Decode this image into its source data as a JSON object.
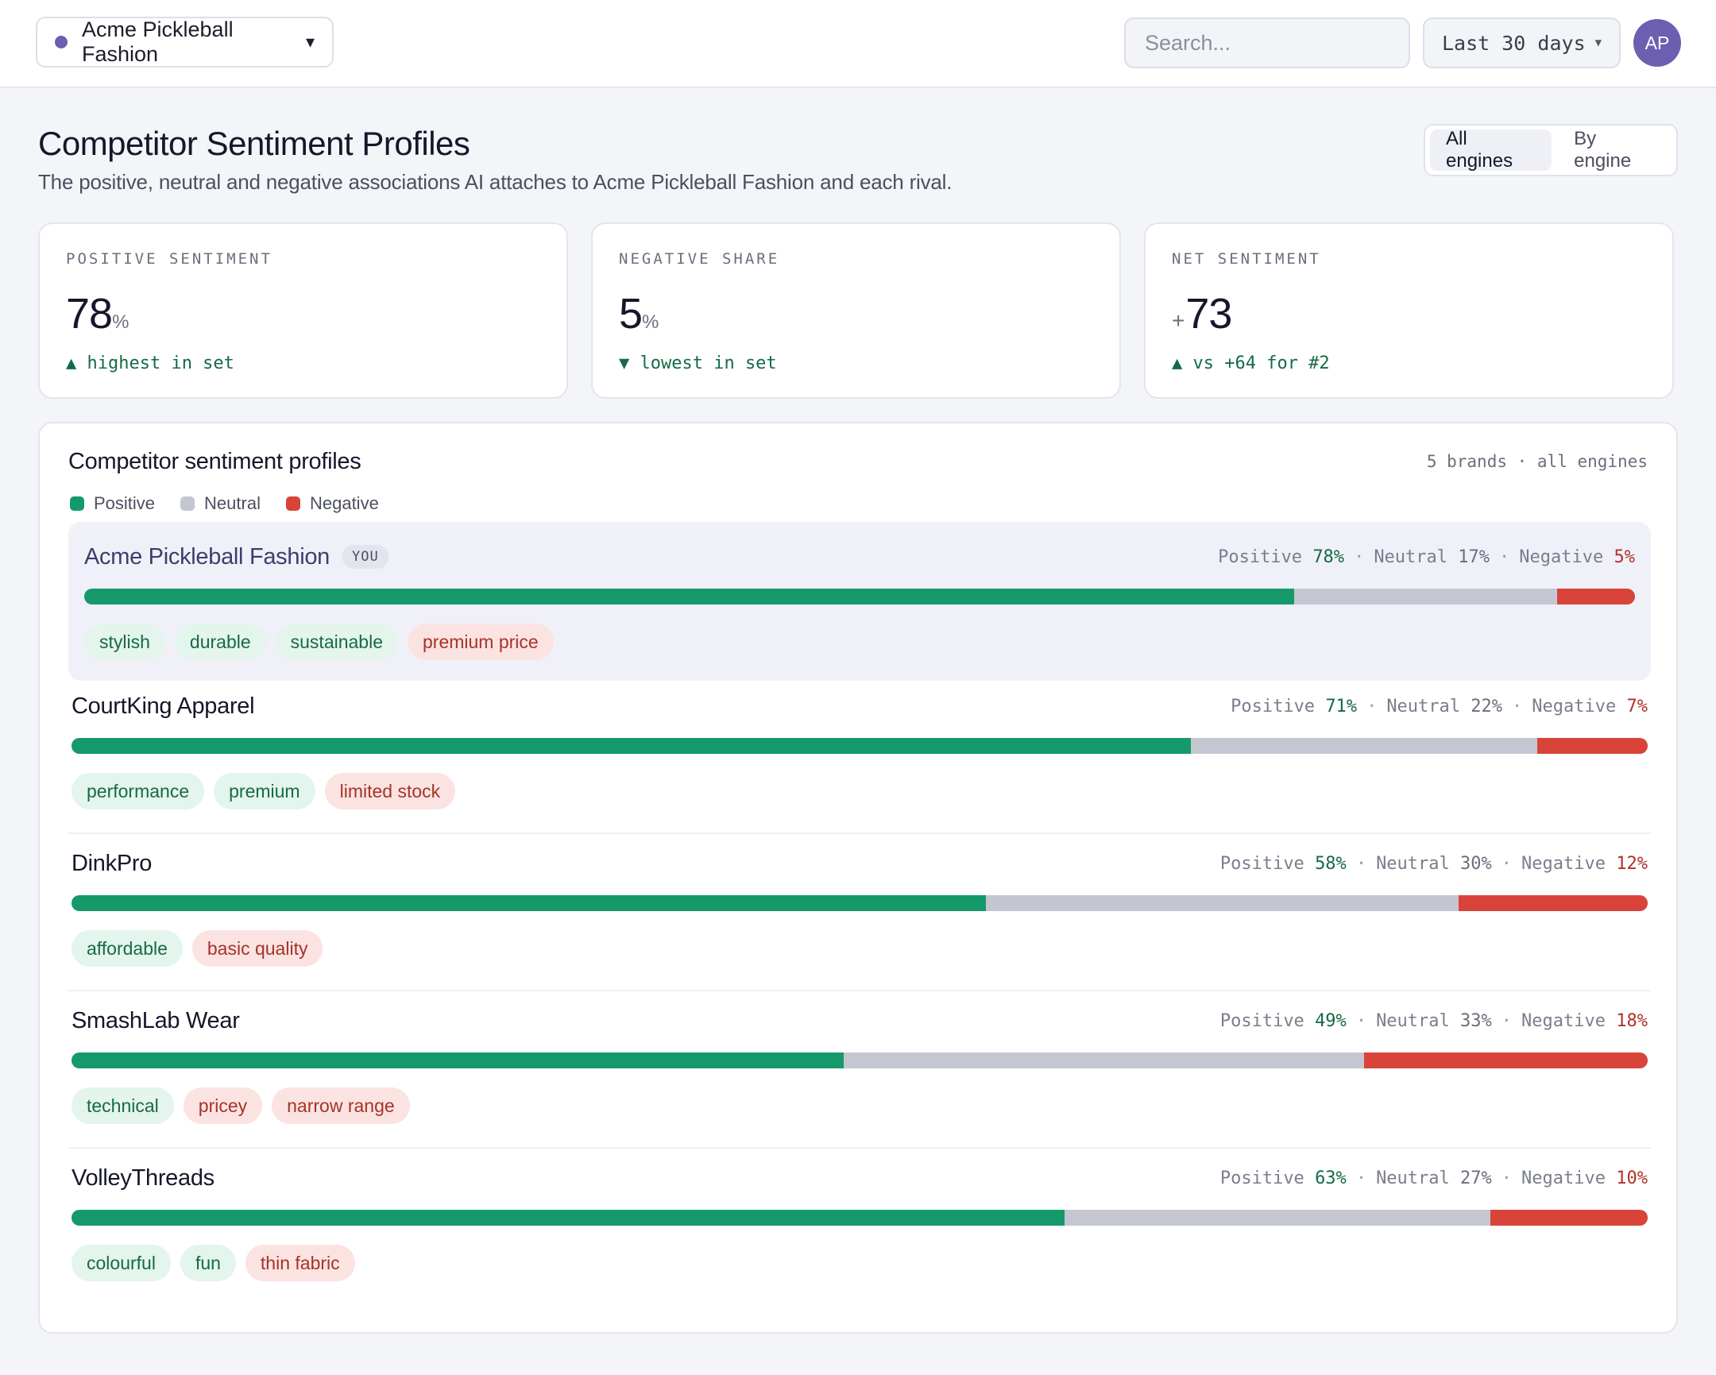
{
  "topbar": {
    "brand": "Acme Pickleball Fashion",
    "search_placeholder": "Search...",
    "date_range": "Last 30 days",
    "avatar_initials": "AP"
  },
  "header": {
    "title": "Competitor Sentiment Profiles",
    "subtitle": "The positive, neutral and negative associations AI attaches to Acme Pickleball Fashion and each rival.",
    "toggle": [
      "All engines",
      "By engine"
    ],
    "toggle_active": "All engines"
  },
  "kpis": [
    {
      "label": "POSITIVE SENTIMENT",
      "prefix": "",
      "value": "78",
      "unit": "%",
      "delta": "▲ highest in set"
    },
    {
      "label": "NEGATIVE SHARE",
      "prefix": "",
      "value": "5",
      "unit": "%",
      "delta": "▼ lowest in set"
    },
    {
      "label": "NET SENTIMENT",
      "prefix": "+",
      "value": "73",
      "unit": "",
      "delta": "▲ vs +64 for #2"
    }
  ],
  "panel": {
    "title": "Competitor sentiment profiles",
    "meta": "5 brands · all engines",
    "legend": [
      "Positive",
      "Neutral",
      "Negative"
    ],
    "stat_labels": {
      "positive": "Positive",
      "neutral": "Neutral",
      "negative": "Negative"
    },
    "you_badge": "YOU",
    "brands": [
      {
        "name": "Acme Pickleball Fashion",
        "you": true,
        "positive": 78,
        "neutral": 17,
        "negative": 5,
        "tags": [
          {
            "text": "stylish",
            "tone": "pos"
          },
          {
            "text": "durable",
            "tone": "pos"
          },
          {
            "text": "sustainable",
            "tone": "pos"
          },
          {
            "text": "premium price",
            "tone": "neg"
          }
        ]
      },
      {
        "name": "CourtKing Apparel",
        "you": false,
        "positive": 71,
        "neutral": 22,
        "negative": 7,
        "tags": [
          {
            "text": "performance",
            "tone": "pos"
          },
          {
            "text": "premium",
            "tone": "pos"
          },
          {
            "text": "limited stock",
            "tone": "neg"
          }
        ]
      },
      {
        "name": "DinkPro",
        "you": false,
        "positive": 58,
        "neutral": 30,
        "negative": 12,
        "tags": [
          {
            "text": "affordable",
            "tone": "pos"
          },
          {
            "text": "basic quality",
            "tone": "neg"
          }
        ]
      },
      {
        "name": "SmashLab Wear",
        "you": false,
        "positive": 49,
        "neutral": 33,
        "negative": 18,
        "tags": [
          {
            "text": "technical",
            "tone": "pos"
          },
          {
            "text": "pricey",
            "tone": "neg"
          },
          {
            "text": "narrow range",
            "tone": "neg"
          }
        ]
      },
      {
        "name": "VolleyThreads",
        "you": false,
        "positive": 63,
        "neutral": 27,
        "negative": 10,
        "tags": [
          {
            "text": "colourful",
            "tone": "pos"
          },
          {
            "text": "fun",
            "tone": "pos"
          },
          {
            "text": "thin fabric",
            "tone": "neg"
          }
        ]
      }
    ]
  },
  "colors": {
    "positive": "#16996a",
    "neutral": "#c4c7d2",
    "negative": "#d9443a",
    "brand_accent": "#6d5fb0"
  }
}
